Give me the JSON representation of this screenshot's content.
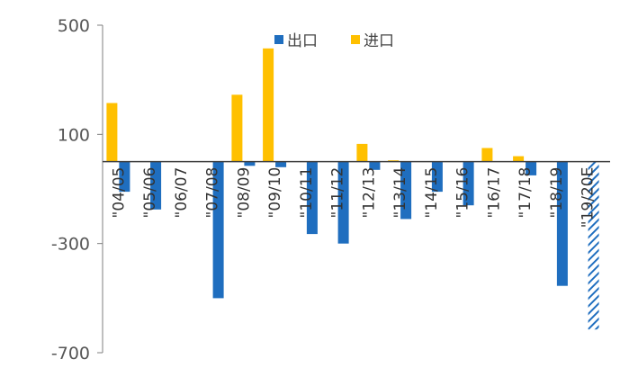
{
  "chart_data": {
    "type": "bar",
    "categories": [
      "\"04/05",
      "\"05/06",
      "\"06/07",
      "\"07/08",
      "\"08/09",
      "\"09/10",
      "\"10/11",
      "\"11/12",
      "\"12/13",
      "\"13/14",
      "\"14/15",
      "\"15/16",
      "\"16/17",
      "\"17/18",
      "\"18/19",
      "\"19/20E"
    ],
    "series": [
      {
        "name": "出口",
        "color": "#1f6ebf",
        "values": [
          -110,
          -175,
          0,
          -500,
          -15,
          -20,
          -265,
          -300,
          -30,
          -210,
          -110,
          -160,
          0,
          -50,
          -455,
          -615
        ],
        "estimated_last": true
      },
      {
        "name": "进口",
        "color": "#ffc000",
        "values": [
          215,
          0,
          0,
          0,
          245,
          415,
          0,
          0,
          65,
          5,
          0,
          0,
          50,
          20,
          0,
          0
        ]
      }
    ],
    "ylim": [
      -700,
      500
    ],
    "yticks": [
      500,
      100,
      -300,
      -700
    ],
    "ytick_labels": [
      "500",
      "100",
      "-300",
      "-700"
    ],
    "grid": false,
    "legend": "top-center",
    "title": "",
    "xlabel": "",
    "ylabel": ""
  }
}
